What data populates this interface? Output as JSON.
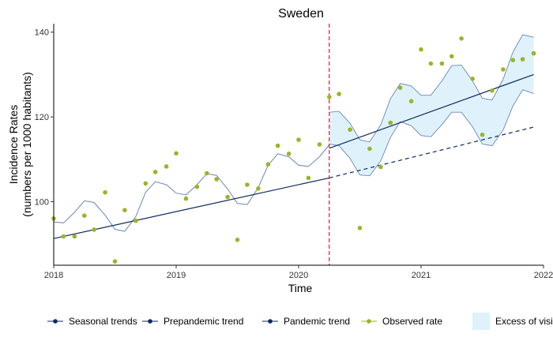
{
  "chart_data": {
    "type": "line",
    "title": "Sweden",
    "xlabel": "Time",
    "ylabel_line1": "Incidence Rates",
    "ylabel_line2": "(numbers per 1000 habitants)",
    "xlim": [
      2018.0,
      2022.0
    ],
    "ylim": [
      85,
      142
    ],
    "x_ticks": [
      2018,
      2019,
      2020,
      2021,
      2022
    ],
    "y_ticks": [
      100,
      120,
      140
    ],
    "grid": false,
    "pandemic_start": 2020.25,
    "colors": {
      "observed": "#9ab526",
      "seasonal": "#6b86b8",
      "trend": "#0b2a5e",
      "pandemic_line": "#cc1f2f",
      "excess_fill": "#dff2fb",
      "excess_stroke": "#6b86b8"
    },
    "observed": [
      [
        2018.0,
        96.0
      ],
      [
        2018.08,
        91.8
      ],
      [
        2018.17,
        91.8
      ],
      [
        2018.25,
        96.7
      ],
      [
        2018.33,
        93.4
      ],
      [
        2018.42,
        102.2
      ],
      [
        2018.5,
        85.9
      ],
      [
        2018.58,
        98.0
      ],
      [
        2018.67,
        95.5
      ],
      [
        2018.75,
        104.3
      ],
      [
        2018.83,
        107.0
      ],
      [
        2018.92,
        108.3
      ],
      [
        2019.0,
        111.4
      ],
      [
        2019.08,
        100.7
      ],
      [
        2019.17,
        103.5
      ],
      [
        2019.25,
        106.7
      ],
      [
        2019.33,
        105.3
      ],
      [
        2019.42,
        101.1
      ],
      [
        2019.5,
        91.0
      ],
      [
        2019.58,
        104.0
      ],
      [
        2019.67,
        103.1
      ],
      [
        2019.75,
        108.8
      ],
      [
        2019.83,
        113.2
      ],
      [
        2019.92,
        111.3
      ],
      [
        2020.0,
        114.6
      ],
      [
        2020.08,
        105.6
      ],
      [
        2020.17,
        113.5
      ],
      [
        2020.25,
        124.7
      ],
      [
        2020.33,
        125.4
      ],
      [
        2020.42,
        117.0
      ],
      [
        2020.5,
        93.8
      ],
      [
        2020.58,
        112.5
      ],
      [
        2020.67,
        108.2
      ],
      [
        2020.75,
        118.6
      ],
      [
        2020.83,
        126.9
      ],
      [
        2020.92,
        123.7
      ],
      [
        2021.0,
        135.9
      ],
      [
        2021.08,
        132.6
      ],
      [
        2021.17,
        132.6
      ],
      [
        2021.25,
        134.3
      ],
      [
        2021.33,
        138.5
      ],
      [
        2021.42,
        129.0
      ],
      [
        2021.5,
        115.8
      ],
      [
        2021.58,
        126.2
      ],
      [
        2021.67,
        131.2
      ],
      [
        2021.75,
        133.4
      ],
      [
        2021.83,
        133.6
      ],
      [
        2021.92,
        135.0
      ]
    ],
    "seasonal_pre": [
      [
        2018.0,
        95.2
      ],
      [
        2018.08,
        95.0
      ],
      [
        2018.17,
        97.5
      ],
      [
        2018.25,
        100.2
      ],
      [
        2018.33,
        99.8
      ],
      [
        2018.42,
        96.8
      ],
      [
        2018.5,
        93.5
      ],
      [
        2018.58,
        93.0
      ],
      [
        2018.67,
        96.5
      ],
      [
        2018.75,
        102.2
      ],
      [
        2018.83,
        104.7
      ],
      [
        2018.92,
        104.0
      ],
      [
        2019.0,
        102.0
      ],
      [
        2019.08,
        101.6
      ],
      [
        2019.17,
        104.0
      ],
      [
        2019.25,
        106.6
      ],
      [
        2019.33,
        106.2
      ],
      [
        2019.42,
        103.0
      ],
      [
        2019.5,
        99.6
      ],
      [
        2019.58,
        99.3
      ],
      [
        2019.67,
        103.3
      ],
      [
        2019.75,
        108.6
      ],
      [
        2019.83,
        111.3
      ],
      [
        2019.92,
        110.6
      ],
      [
        2020.0,
        108.6
      ],
      [
        2020.08,
        108.3
      ],
      [
        2020.17,
        110.6
      ],
      [
        2020.25,
        113.4
      ]
    ],
    "excess_upper": [
      [
        2020.25,
        121.1
      ],
      [
        2020.33,
        121.3
      ],
      [
        2020.42,
        118.5
      ],
      [
        2020.5,
        114.6
      ],
      [
        2020.58,
        114.1
      ],
      [
        2020.67,
        118.1
      ],
      [
        2020.75,
        124.3
      ],
      [
        2020.83,
        127.9
      ],
      [
        2020.92,
        127.3
      ],
      [
        2021.0,
        125.1
      ],
      [
        2021.08,
        125.1
      ],
      [
        2021.17,
        128.5
      ],
      [
        2021.25,
        132.1
      ],
      [
        2021.33,
        132.2
      ],
      [
        2021.42,
        128.5
      ],
      [
        2021.5,
        124.4
      ],
      [
        2021.58,
        124.0
      ],
      [
        2021.67,
        128.9
      ],
      [
        2021.75,
        135.3
      ],
      [
        2021.83,
        139.4
      ],
      [
        2021.92,
        138.8
      ]
    ],
    "excess_lower": [
      [
        2020.25,
        113.6
      ],
      [
        2020.33,
        113.2
      ],
      [
        2020.42,
        110.2
      ],
      [
        2020.5,
        106.3
      ],
      [
        2020.58,
        106.1
      ],
      [
        2020.67,
        109.6
      ],
      [
        2020.75,
        115.2
      ],
      [
        2020.83,
        118.9
      ],
      [
        2020.92,
        117.9
      ],
      [
        2021.0,
        115.6
      ],
      [
        2021.08,
        115.3
      ],
      [
        2021.17,
        118.2
      ],
      [
        2021.25,
        121.1
      ],
      [
        2021.33,
        121.1
      ],
      [
        2021.42,
        117.7
      ],
      [
        2021.5,
        113.6
      ],
      [
        2021.58,
        113.2
      ],
      [
        2021.67,
        116.9
      ],
      [
        2021.75,
        122.6
      ],
      [
        2021.83,
        126.4
      ],
      [
        2021.92,
        125.5
      ]
    ],
    "prepandemic_trend": [
      [
        2018.0,
        91.3
      ],
      [
        2020.25,
        105.6
      ]
    ],
    "prepandemic_projection": [
      [
        2020.25,
        105.6
      ],
      [
        2021.92,
        117.6
      ]
    ],
    "pandemic_trend": [
      [
        2020.25,
        112.6
      ],
      [
        2021.92,
        130.0
      ]
    ],
    "legend": {
      "position": "bottom",
      "items": [
        {
          "key": "seasonal",
          "label": "Seasonal trends"
        },
        {
          "key": "prepandemic",
          "label": "Prepandemic trend"
        },
        {
          "key": "pandemic",
          "label": "Pandemic trend"
        },
        {
          "key": "observed",
          "label": "Observed rate"
        },
        {
          "key": "excess",
          "label": "Excess of visi"
        }
      ]
    }
  }
}
